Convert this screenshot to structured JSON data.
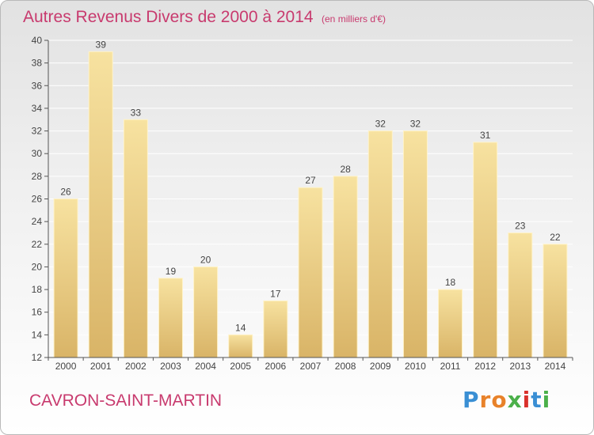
{
  "title": "Autres Revenus Divers de 2000 à 2014",
  "title_unit": "(en milliers d'€)",
  "commune": "CAVRON-SAINT-MARTIN",
  "logo": {
    "letters": [
      "P",
      "r",
      "o",
      "x",
      "i",
      "t",
      "i"
    ],
    "colors": [
      "#3a8fd4",
      "#e8822a",
      "#e8822a",
      "#4bb04a",
      "#d9312b",
      "#3a8fd4",
      "#4bb04a"
    ]
  },
  "colors": {
    "bar_light": "#f7e2a0",
    "bar_dark": "#d9b467",
    "axis": "#555555",
    "grid": "#ffffff",
    "text": "#444444",
    "accent": "#c83a6e"
  },
  "chart_data": {
    "type": "bar",
    "title": "Autres Revenus Divers de 2000 à 2014",
    "ylabel": "",
    "xlabel": "",
    "categories": [
      "2000",
      "2001",
      "2002",
      "2003",
      "2004",
      "2005",
      "2006",
      "2007",
      "2008",
      "2009",
      "2010",
      "2011",
      "2012",
      "2013",
      "2014"
    ],
    "values": [
      26,
      39,
      33,
      19,
      20,
      14,
      17,
      27,
      28,
      32,
      32,
      18,
      31,
      23,
      22
    ],
    "ylim": [
      12,
      40
    ],
    "yticks": [
      12,
      14,
      16,
      18,
      20,
      22,
      24,
      26,
      28,
      30,
      32,
      34,
      36,
      38,
      40
    ],
    "grid": true,
    "data_labels": true
  }
}
